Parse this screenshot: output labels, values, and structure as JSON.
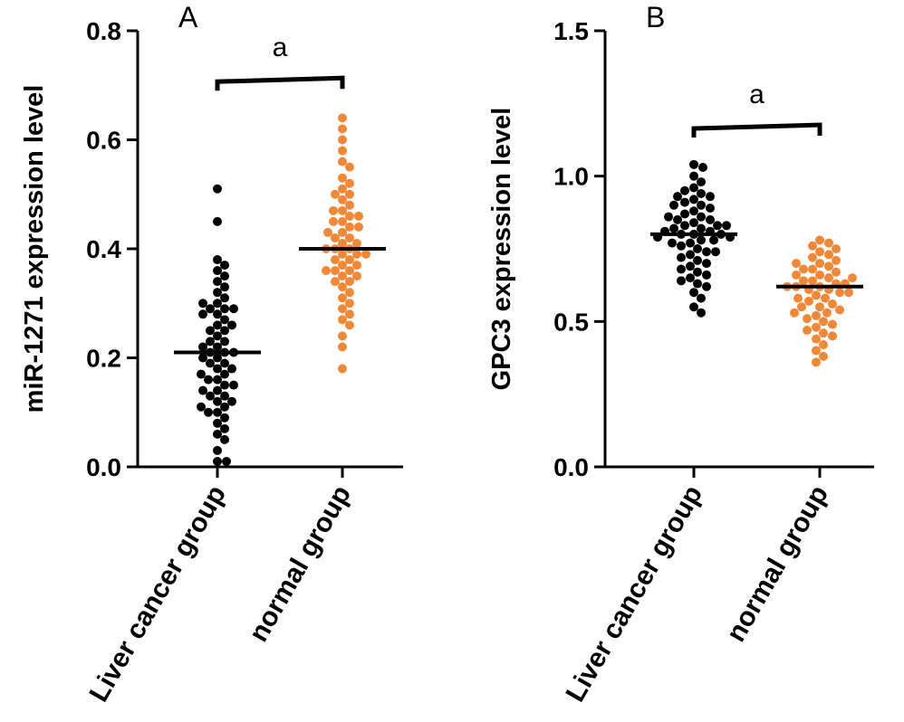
{
  "chart_data": [
    {
      "type": "swarm",
      "panel": "A",
      "ylabel": "miR-1271 expression level",
      "categories": [
        "Liver cancer group",
        "normal group"
      ],
      "colors": [
        "#000000",
        "#f0883a"
      ],
      "values": [
        [
          0.51,
          0.45,
          0.38,
          0.37,
          0.36,
          0.35,
          0.34,
          0.33,
          0.32,
          0.31,
          0.3,
          0.29,
          0.29,
          0.29,
          0.28,
          0.28,
          0.27,
          0.26,
          0.25,
          0.25,
          0.24,
          0.23,
          0.23,
          0.22,
          0.21,
          0.21,
          0.21,
          0.2,
          0.2,
          0.19,
          0.19,
          0.18,
          0.18,
          0.17,
          0.16,
          0.16,
          0.15,
          0.15,
          0.14,
          0.13,
          0.13,
          0.12,
          0.12,
          0.11,
          0.1,
          0.1,
          0.09,
          0.08,
          0.07,
          0.06,
          0.05,
          0.03,
          0.01,
          0.01,
          0.26,
          0.22,
          0.17,
          0.14,
          0.11,
          0.3
        ],
        [
          0.64,
          0.62,
          0.6,
          0.58,
          0.56,
          0.55,
          0.53,
          0.52,
          0.51,
          0.5,
          0.49,
          0.48,
          0.47,
          0.47,
          0.46,
          0.45,
          0.45,
          0.44,
          0.44,
          0.43,
          0.42,
          0.42,
          0.41,
          0.41,
          0.4,
          0.4,
          0.4,
          0.39,
          0.39,
          0.38,
          0.38,
          0.37,
          0.37,
          0.36,
          0.36,
          0.35,
          0.35,
          0.34,
          0.34,
          0.33,
          0.32,
          0.31,
          0.3,
          0.29,
          0.28,
          0.27,
          0.26,
          0.24,
          0.22,
          0.18,
          0.43,
          0.39,
          0.36,
          0.46,
          0.5
        ]
      ],
      "medians": [
        0.21,
        0.4
      ],
      "ylim": [
        0,
        0.8
      ],
      "yticks": [
        {
          "value": 0,
          "label": "0.0"
        },
        0.2,
        0.4,
        0.6,
        0.8
      ],
      "annotation": {
        "text": "a",
        "y": 0.71
      }
    },
    {
      "type": "swarm",
      "panel": "B",
      "ylabel": "GPC3 expression level",
      "categories": [
        "Liver cancer group",
        "normal group"
      ],
      "colors": [
        "#000000",
        "#f0883a"
      ],
      "values": [
        [
          1.04,
          1.03,
          1.0,
          0.98,
          0.96,
          0.95,
          0.94,
          0.93,
          0.93,
          0.92,
          0.91,
          0.9,
          0.89,
          0.88,
          0.87,
          0.86,
          0.85,
          0.85,
          0.84,
          0.83,
          0.83,
          0.82,
          0.82,
          0.81,
          0.81,
          0.8,
          0.8,
          0.8,
          0.79,
          0.79,
          0.78,
          0.78,
          0.77,
          0.76,
          0.75,
          0.74,
          0.73,
          0.72,
          0.71,
          0.7,
          0.69,
          0.68,
          0.67,
          0.66,
          0.65,
          0.64,
          0.63,
          0.62,
          0.6,
          0.58,
          0.55,
          0.53,
          0.9,
          0.86,
          0.83,
          0.77,
          0.74
        ],
        [
          0.78,
          0.77,
          0.76,
          0.75,
          0.74,
          0.73,
          0.72,
          0.71,
          0.7,
          0.69,
          0.68,
          0.68,
          0.67,
          0.66,
          0.66,
          0.65,
          0.64,
          0.64,
          0.63,
          0.63,
          0.62,
          0.62,
          0.62,
          0.61,
          0.61,
          0.6,
          0.6,
          0.59,
          0.58,
          0.57,
          0.56,
          0.55,
          0.55,
          0.54,
          0.53,
          0.52,
          0.51,
          0.5,
          0.49,
          0.48,
          0.47,
          0.46,
          0.45,
          0.44,
          0.42,
          0.4,
          0.38,
          0.36,
          0.7,
          0.65,
          0.58,
          0.53
        ]
      ],
      "medians": [
        0.8,
        0.62
      ],
      "ylim": [
        0,
        1.5
      ],
      "yticks": [
        {
          "value": 0,
          "label": "0.0"
        },
        0.5,
        {
          "value": 1,
          "label": "1.0"
        },
        1.5
      ],
      "annotation": {
        "text": "a",
        "y": 1.17
      }
    }
  ]
}
